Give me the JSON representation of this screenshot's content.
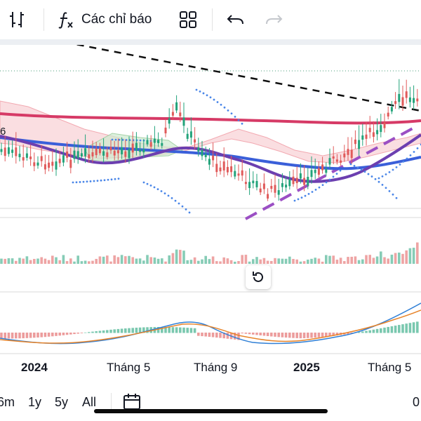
{
  "toolbar": {
    "indicators_label": "Các chỉ báo",
    "icons": [
      "chart-style-icon",
      "function-icon",
      "layouts-icon",
      "undo-icon",
      "redo-icon"
    ]
  },
  "time_axis": {
    "labels": [
      {
        "text": "2024",
        "bold": true
      },
      {
        "text": "Tháng 5",
        "bold": false
      },
      {
        "text": "Tháng 9",
        "bold": false
      },
      {
        "text": "2025",
        "bold": true
      },
      {
        "text": "Tháng 5",
        "bold": false
      }
    ]
  },
  "range_bar": {
    "items": [
      "6m",
      "1y",
      "5y",
      "All"
    ],
    "right_text": "0"
  },
  "price_pane": {
    "partial_label": "6"
  },
  "colors": {
    "up": "#22a37a",
    "down": "#e05a5a",
    "ma_long": "#d63a66",
    "ma_mid": "#3a5fd9",
    "ma_short": "#6c3fb0",
    "trend_dash": "#9b4fc4",
    "sar": "#4a86e8",
    "cloud_red": "#f6c6cc",
    "cloud_green": "#c8e6c9",
    "macd_line": "#2f7fd6",
    "signal_line": "#e7842a"
  }
}
